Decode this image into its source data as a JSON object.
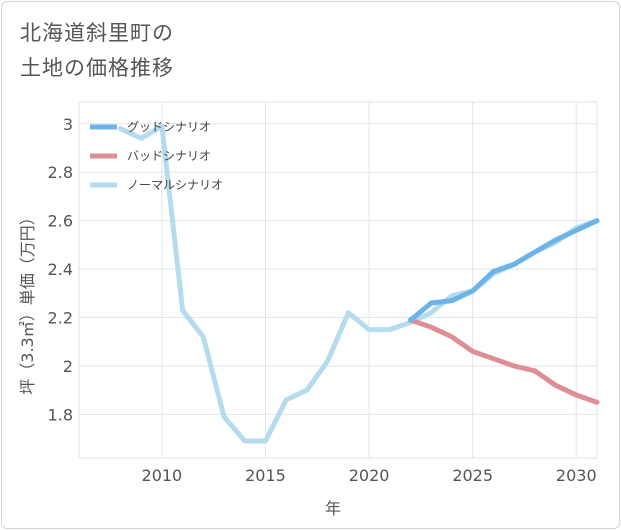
{
  "title_lines": [
    "北海道斜里町の",
    "土地の価格推移"
  ],
  "chart_data": {
    "type": "line",
    "xlabel": "年",
    "ylabel": "坪（3.3㎡）単価（万円）",
    "xlim": [
      2006,
      2031
    ],
    "ylim": [
      1.62,
      3.09
    ],
    "x_ticks": [
      2010,
      2015,
      2020,
      2025,
      2030
    ],
    "y_ticks": [
      1.8,
      2,
      2.2,
      2.4,
      2.6,
      2.8,
      3
    ],
    "legend_position": "top-left",
    "grid": true,
    "series": [
      {
        "name": "グッドシナリオ",
        "color": "#6cb4e8",
        "x": [
          2022,
          2023,
          2024,
          2025,
          2026,
          2027,
          2028,
          2029,
          2030,
          2031
        ],
        "y": [
          2.19,
          2.26,
          2.27,
          2.31,
          2.39,
          2.42,
          2.47,
          2.52,
          2.56,
          2.6
        ]
      },
      {
        "name": "バッドシナリオ",
        "color": "#de8f95",
        "x": [
          2022,
          2023,
          2024,
          2025,
          2026,
          2027,
          2028,
          2029,
          2030,
          2031
        ],
        "y": [
          2.19,
          2.16,
          2.12,
          2.06,
          2.03,
          2.0,
          1.98,
          1.92,
          1.88,
          1.85
        ]
      },
      {
        "name": "ノーマルシナリオ",
        "color": "#b5dbee",
        "x": [
          2008,
          2009,
          2010,
          2011,
          2012,
          2013,
          2014,
          2015,
          2016,
          2017,
          2018,
          2019,
          2020,
          2021,
          2022,
          2023,
          2024,
          2025,
          2026,
          2027,
          2028,
          2029,
          2030,
          2031
        ],
        "y": [
          2.98,
          2.94,
          2.99,
          2.23,
          2.12,
          1.79,
          1.69,
          1.69,
          1.86,
          1.9,
          2.02,
          2.22,
          2.15,
          2.15,
          2.18,
          2.22,
          2.29,
          2.31,
          2.38,
          2.42,
          2.47,
          2.51,
          2.57,
          2.6
        ]
      }
    ]
  }
}
